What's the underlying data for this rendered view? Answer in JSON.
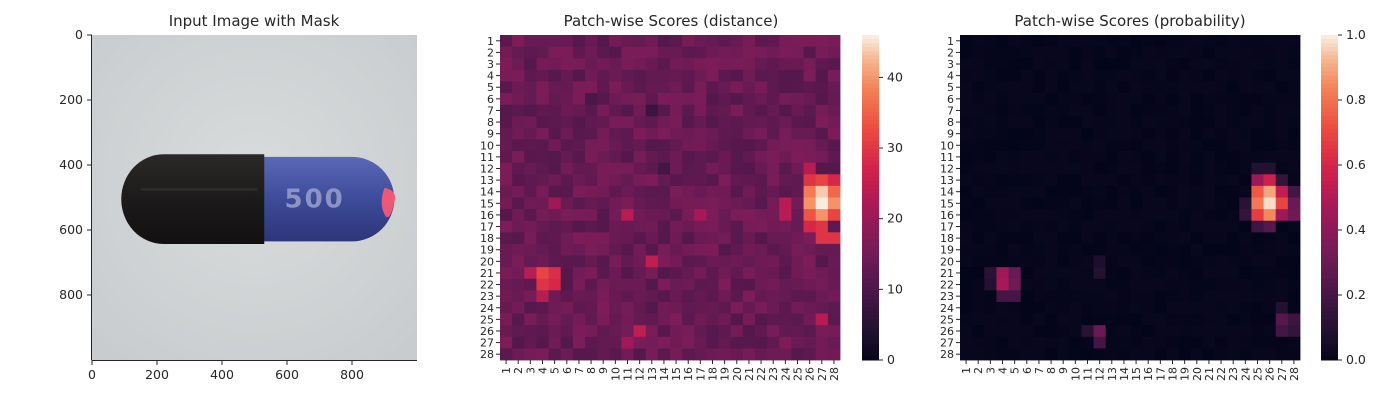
{
  "chart_data": [
    {
      "type": "image",
      "title": "Input Image with Mask",
      "x_ticks": [
        "0",
        "200",
        "400",
        "600",
        "800"
      ],
      "y_ticks": [
        "0",
        "200",
        "400",
        "600",
        "800"
      ],
      "xlim": [
        0,
        1000
      ],
      "ylim": [
        1000,
        0
      ],
      "image": {
        "background": "#c8ccce",
        "capsule_dark_color": "#1c1a1a",
        "capsule_blue_color": "#3d4b9a",
        "imprint_text": "500",
        "imprint_color": "#8c94c4",
        "mask_color": "#ff5a73"
      }
    },
    {
      "type": "heatmap",
      "title": "Patch-wise Scores (distance)",
      "x_categories": [
        "1",
        "2",
        "3",
        "4",
        "5",
        "6",
        "7",
        "8",
        "9",
        "10",
        "11",
        "12",
        "13",
        "14",
        "15",
        "16",
        "17",
        "18",
        "19",
        "20",
        "21",
        "22",
        "23",
        "24",
        "25",
        "26",
        "27",
        "28"
      ],
      "y_categories": [
        "1",
        "2",
        "3",
        "4",
        "5",
        "6",
        "7",
        "8",
        "9",
        "10",
        "11",
        "12",
        "13",
        "14",
        "15",
        "16",
        "17",
        "18",
        "19",
        "20",
        "21",
        "22",
        "23",
        "24",
        "25",
        "26",
        "27",
        "28"
      ],
      "colormap": "rocket",
      "vmin": 0,
      "vmax": 46,
      "colorbar_ticks": [
        "0",
        "10",
        "20",
        "30",
        "40"
      ],
      "base_value": 14,
      "hotspots": [
        {
          "row": 14,
          "col": 27,
          "value": 44
        },
        {
          "row": 15,
          "col": 27,
          "value": 46
        },
        {
          "row": 15,
          "col": 28,
          "value": 40
        },
        {
          "row": 14,
          "col": 28,
          "value": 36
        },
        {
          "row": 16,
          "col": 27,
          "value": 40
        },
        {
          "row": 14,
          "col": 26,
          "value": 38
        },
        {
          "row": 15,
          "col": 26,
          "value": 40
        },
        {
          "row": 16,
          "col": 26,
          "value": 34
        },
        {
          "row": 13,
          "col": 27,
          "value": 32
        },
        {
          "row": 13,
          "col": 26,
          "value": 30
        },
        {
          "row": 17,
          "col": 27,
          "value": 30
        },
        {
          "row": 17,
          "col": 26,
          "value": 28
        },
        {
          "row": 18,
          "col": 27,
          "value": 30
        },
        {
          "row": 18,
          "col": 28,
          "value": 30
        },
        {
          "row": 13,
          "col": 28,
          "value": 28
        },
        {
          "row": 16,
          "col": 28,
          "value": 32
        },
        {
          "row": 12,
          "col": 26,
          "value": 24
        },
        {
          "row": 21,
          "col": 4,
          "value": 32
        },
        {
          "row": 22,
          "col": 4,
          "value": 30
        },
        {
          "row": 21,
          "col": 5,
          "value": 29
        },
        {
          "row": 22,
          "col": 5,
          "value": 28
        },
        {
          "row": 21,
          "col": 3,
          "value": 24
        },
        {
          "row": 23,
          "col": 4,
          "value": 24
        },
        {
          "row": 20,
          "col": 13,
          "value": 25
        },
        {
          "row": 26,
          "col": 12,
          "value": 25
        },
        {
          "row": 25,
          "col": 27,
          "value": 24
        },
        {
          "row": 16,
          "col": 11,
          "value": 24
        },
        {
          "row": 16,
          "col": 24,
          "value": 24
        },
        {
          "row": 15,
          "col": 24,
          "value": 24
        },
        {
          "row": 15,
          "col": 5,
          "value": 21
        },
        {
          "row": 16,
          "col": 17,
          "value": 22
        },
        {
          "row": 27,
          "col": 11,
          "value": 21
        },
        {
          "row": 7,
          "col": 13,
          "value": 8
        },
        {
          "row": 6,
          "col": 8,
          "value": 10
        },
        {
          "row": 12,
          "col": 14,
          "value": 9
        }
      ]
    },
    {
      "type": "heatmap",
      "title": "Patch-wise Scores (probability)",
      "x_categories": [
        "1",
        "2",
        "3",
        "4",
        "5",
        "6",
        "7",
        "8",
        "9",
        "10",
        "11",
        "12",
        "13",
        "14",
        "15",
        "16",
        "17",
        "18",
        "19",
        "20",
        "21",
        "22",
        "23",
        "24",
        "25",
        "26",
        "27",
        "28"
      ],
      "y_categories": [
        "1",
        "2",
        "3",
        "4",
        "5",
        "6",
        "7",
        "8",
        "9",
        "10",
        "11",
        "12",
        "13",
        "14",
        "15",
        "16",
        "17",
        "18",
        "19",
        "20",
        "21",
        "22",
        "23",
        "24",
        "25",
        "26",
        "27",
        "28"
      ],
      "colormap": "rocket",
      "vmin": 0.0,
      "vmax": 1.0,
      "colorbar_ticks": [
        "0.0",
        "0.2",
        "0.4",
        "0.6",
        "0.8",
        "1.0"
      ],
      "base_value": 0.01,
      "hotspots": [
        {
          "row": 15,
          "col": 26,
          "value": 0.98
        },
        {
          "row": 14,
          "col": 26,
          "value": 0.9
        },
        {
          "row": 16,
          "col": 26,
          "value": 0.85
        },
        {
          "row": 15,
          "col": 25,
          "value": 0.82
        },
        {
          "row": 14,
          "col": 25,
          "value": 0.75
        },
        {
          "row": 16,
          "col": 25,
          "value": 0.68
        },
        {
          "row": 15,
          "col": 27,
          "value": 0.7
        },
        {
          "row": 13,
          "col": 26,
          "value": 0.58
        },
        {
          "row": 13,
          "col": 25,
          "value": 0.45
        },
        {
          "row": 14,
          "col": 27,
          "value": 0.55
        },
        {
          "row": 16,
          "col": 27,
          "value": 0.45
        },
        {
          "row": 15,
          "col": 28,
          "value": 0.3
        },
        {
          "row": 16,
          "col": 28,
          "value": 0.32
        },
        {
          "row": 14,
          "col": 28,
          "value": 0.2
        },
        {
          "row": 17,
          "col": 26,
          "value": 0.25
        },
        {
          "row": 17,
          "col": 25,
          "value": 0.18
        },
        {
          "row": 13,
          "col": 27,
          "value": 0.15
        },
        {
          "row": 12,
          "col": 26,
          "value": 0.1
        },
        {
          "row": 21,
          "col": 4,
          "value": 0.45
        },
        {
          "row": 22,
          "col": 4,
          "value": 0.48
        },
        {
          "row": 21,
          "col": 5,
          "value": 0.3
        },
        {
          "row": 22,
          "col": 5,
          "value": 0.32
        },
        {
          "row": 23,
          "col": 4,
          "value": 0.2
        },
        {
          "row": 23,
          "col": 5,
          "value": 0.2
        },
        {
          "row": 21,
          "col": 3,
          "value": 0.12
        },
        {
          "row": 22,
          "col": 3,
          "value": 0.1
        },
        {
          "row": 26,
          "col": 12,
          "value": 0.3
        },
        {
          "row": 27,
          "col": 12,
          "value": 0.2
        },
        {
          "row": 26,
          "col": 11,
          "value": 0.12
        },
        {
          "row": 25,
          "col": 27,
          "value": 0.25
        },
        {
          "row": 26,
          "col": 27,
          "value": 0.2
        },
        {
          "row": 25,
          "col": 28,
          "value": 0.18
        },
        {
          "row": 26,
          "col": 28,
          "value": 0.15
        },
        {
          "row": 20,
          "col": 12,
          "value": 0.08
        },
        {
          "row": 21,
          "col": 12,
          "value": 0.1
        },
        {
          "row": 24,
          "col": 27,
          "value": 0.1
        },
        {
          "row": 16,
          "col": 24,
          "value": 0.15
        },
        {
          "row": 15,
          "col": 24,
          "value": 0.12
        },
        {
          "row": 12,
          "col": 25,
          "value": 0.1
        }
      ]
    }
  ]
}
